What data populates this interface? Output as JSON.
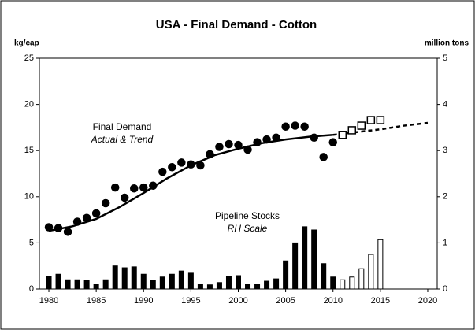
{
  "chart_data": {
    "type": "combo",
    "title": "USA - Final Demand - Cotton",
    "y_label": "kg/cap",
    "y2_label": "million tons",
    "annotations": [
      "Final Demand",
      "Actual & Trend",
      "Pipeline Stocks",
      "RH Scale"
    ],
    "xlim": [
      1979,
      2021
    ],
    "xticks": [
      1980,
      1985,
      1990,
      1995,
      2000,
      2005,
      2010,
      2015,
      2020
    ],
    "ylim": [
      0,
      25
    ],
    "yticks": [
      0,
      5,
      10,
      15,
      20,
      25
    ],
    "y2lim": [
      0,
      5
    ],
    "y2ticks": [
      0,
      1,
      2,
      3,
      4,
      5
    ],
    "series": [
      {
        "type": "bar",
        "axis": "y2",
        "color": "#000000",
        "filled": true,
        "x": [
          1980,
          1981,
          1982,
          1983,
          1984,
          1985,
          1986,
          1987,
          1988,
          1989,
          1990,
          1991,
          1992,
          1993,
          1994,
          1995,
          1996,
          1997,
          1998,
          1999,
          2000,
          2001,
          2002,
          2003,
          2004,
          2005,
          2006,
          2007,
          2008,
          2009,
          2010
        ],
        "values": [
          0.27,
          0.32,
          0.2,
          0.2,
          0.19,
          0.1,
          0.2,
          0.5,
          0.46,
          0.48,
          0.32,
          0.19,
          0.26,
          0.32,
          0.39,
          0.36,
          0.1,
          0.09,
          0.14,
          0.27,
          0.29,
          0.1,
          0.1,
          0.17,
          0.22,
          0.61,
          1.0,
          1.35,
          1.28,
          0.55,
          0.26
        ]
      },
      {
        "type": "bar",
        "axis": "y2",
        "color": "#000000",
        "filled": false,
        "x": [
          2011,
          2012,
          2013,
          2014,
          2015
        ],
        "values": [
          0.2,
          0.26,
          0.44,
          0.75,
          1.07
        ]
      },
      {
        "type": "line",
        "color": "#000000",
        "dashed": false,
        "x": [
          1980,
          1982.5,
          1985,
          1987.5,
          1990,
          1992.5,
          1995,
          1997.5,
          2000,
          2002.5,
          2005,
          2007.5,
          2010
        ],
        "values": [
          6.3,
          6.8,
          7.6,
          8.9,
          10.4,
          12.0,
          13.4,
          14.5,
          15.2,
          15.8,
          16.2,
          16.5,
          16.7
        ]
      },
      {
        "type": "line",
        "color": "#000000",
        "dashed": true,
        "x": [
          2010,
          2012.5,
          2015,
          2017.5,
          2020
        ],
        "values": [
          16.7,
          17.0,
          17.3,
          17.7,
          18.0
        ]
      },
      {
        "type": "scatter",
        "color": "#000000",
        "marker": "circle",
        "filled": true,
        "x": [
          1980,
          1981,
          1982,
          1983,
          1984,
          1985,
          1986,
          1987,
          1988,
          1989,
          1990,
          1991,
          1992,
          1993,
          1994,
          1995,
          1996,
          1997,
          1998,
          1999,
          2000,
          2001,
          2002,
          2003,
          2004,
          2005,
          2006,
          2007,
          2008,
          2009,
          2010
        ],
        "values": [
          6.7,
          6.6,
          6.2,
          7.3,
          7.7,
          8.2,
          9.3,
          11.0,
          9.9,
          10.9,
          11.0,
          11.2,
          12.7,
          13.2,
          13.7,
          13.5,
          13.4,
          14.6,
          15.4,
          15.7,
          15.6,
          15.1,
          15.9,
          16.2,
          16.4,
          17.6,
          17.7,
          17.6,
          16.4,
          14.3,
          15.9
        ]
      },
      {
        "type": "scatter",
        "color": "#000000",
        "marker": "square",
        "filled": false,
        "x": [
          2011,
          2012,
          2013,
          2014,
          2015
        ],
        "values": [
          16.7,
          17.2,
          17.7,
          18.3,
          18.3
        ]
      }
    ]
  }
}
